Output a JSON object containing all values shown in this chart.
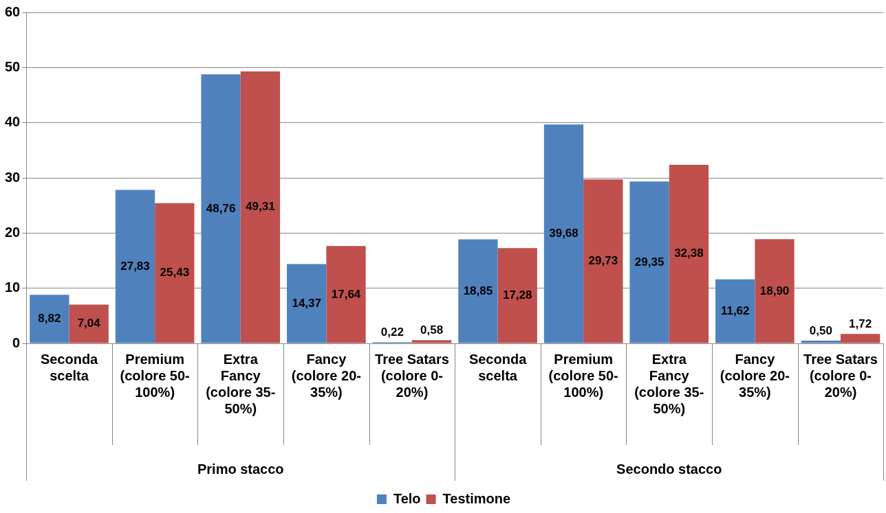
{
  "chart_data": {
    "type": "bar",
    "categories": [
      "Seconda scelta",
      "Premium (colore 50-100%)",
      "Extra Fancy (colore 35-50%)",
      "Fancy (colore 20-35%)",
      "Tree Satars (colore 0-20%)",
      "Seconda scelta",
      "Premium (colore 50-100%)",
      "Extra Fancy (colore 35-50%)",
      "Fancy (colore 20-35%)",
      "Tree Satars (colore 0-20%)"
    ],
    "series": [
      {
        "name": "Telo",
        "color": "#4f81bd",
        "values": [
          8.82,
          27.83,
          48.76,
          14.37,
          0.22,
          18.85,
          39.68,
          29.35,
          11.62,
          0.5
        ],
        "value_labels": [
          "8,82",
          "27,83",
          "48,76",
          "14,37",
          "0,22",
          "18,85",
          "39,68",
          "29,35",
          "11,62",
          "0,50"
        ]
      },
      {
        "name": "Testimone",
        "color": "#c0504d",
        "values": [
          7.04,
          25.43,
          49.31,
          17.64,
          0.58,
          17.28,
          29.73,
          32.38,
          18.9,
          1.72
        ],
        "value_labels": [
          "7,04",
          "25,43",
          "49,31",
          "17,64",
          "0,58",
          "17,28",
          "29,73",
          "32,38",
          "18,90",
          "1,72"
        ]
      }
    ],
    "annotations": [
      "Primo stacco",
      "Secondo stacco"
    ],
    "ylim": [
      0,
      60
    ],
    "yticks": [
      0,
      10,
      20,
      30,
      40,
      50,
      60
    ],
    "grid": "y",
    "legend": "bottom"
  }
}
